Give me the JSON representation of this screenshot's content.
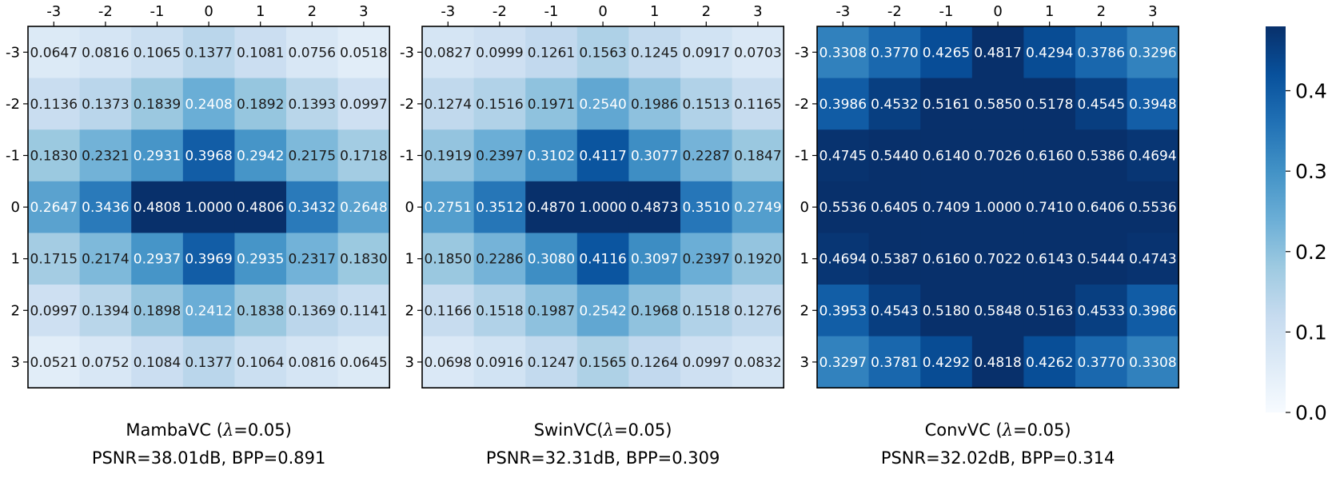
{
  "chart_data": [
    {
      "type": "heatmap",
      "title_line1_prefix": "MambaVC (",
      "title_line1_symbol": "λ",
      "title_line1_suffix": "=0.05)",
      "title_line2": "PSNR=38.01dB, BPP=0.891",
      "x_ticks": [
        "-3",
        "-2",
        "-1",
        "0",
        "1",
        "2",
        "3"
      ],
      "y_ticks": [
        "-3",
        "-2",
        "-1",
        "0",
        "1",
        "2",
        "3"
      ],
      "values": [
        [
          0.0647,
          0.0816,
          0.1065,
          0.1377,
          0.1081,
          0.0756,
          0.0518
        ],
        [
          0.1136,
          0.1373,
          0.1839,
          0.2408,
          0.1892,
          0.1393,
          0.0997
        ],
        [
          0.183,
          0.2321,
          0.2931,
          0.3968,
          0.2942,
          0.2175,
          0.1718
        ],
        [
          0.2647,
          0.3436,
          0.4808,
          1.0,
          0.4806,
          0.3432,
          0.2648
        ],
        [
          0.1715,
          0.2174,
          0.2937,
          0.3969,
          0.2935,
          0.2317,
          0.183
        ],
        [
          0.0997,
          0.1394,
          0.1898,
          0.2412,
          0.1838,
          0.1369,
          0.1141
        ],
        [
          0.0521,
          0.0752,
          0.1084,
          0.1377,
          0.1064,
          0.0816,
          0.0645
        ]
      ]
    },
    {
      "type": "heatmap",
      "title_line1_prefix": "SwinVC(",
      "title_line1_symbol": "λ",
      "title_line1_suffix": "=0.05)",
      "title_line2": "PSNR=32.31dB, BPP=0.309",
      "x_ticks": [
        "-3",
        "-2",
        "-1",
        "0",
        "1",
        "2",
        "3"
      ],
      "y_ticks": [
        "-3",
        "-2",
        "-1",
        "0",
        "1",
        "2",
        "3"
      ],
      "values": [
        [
          0.0827,
          0.0999,
          0.1261,
          0.1563,
          0.1245,
          0.0917,
          0.0703
        ],
        [
          0.1274,
          0.1516,
          0.1971,
          0.254,
          0.1986,
          0.1513,
          0.1165
        ],
        [
          0.1919,
          0.2397,
          0.3102,
          0.4117,
          0.3077,
          0.2287,
          0.1847
        ],
        [
          0.2751,
          0.3512,
          0.487,
          1.0,
          0.4873,
          0.351,
          0.2749
        ],
        [
          0.185,
          0.2286,
          0.308,
          0.4116,
          0.3097,
          0.2397,
          0.192
        ],
        [
          0.1166,
          0.1518,
          0.1987,
          0.2542,
          0.1968,
          0.1518,
          0.1276
        ],
        [
          0.0698,
          0.0916,
          0.1247,
          0.1565,
          0.1264,
          0.0997,
          0.0832
        ]
      ]
    },
    {
      "type": "heatmap",
      "title_line1_prefix": "ConvVC (",
      "title_line1_symbol": "λ",
      "title_line1_suffix": "=0.05)",
      "title_line2": "PSNR=32.02dB, BPP=0.314",
      "x_ticks": [
        "-3",
        "-2",
        "-1",
        "0",
        "1",
        "2",
        "3"
      ],
      "y_ticks": [
        "-3",
        "-2",
        "-1",
        "0",
        "1",
        "2",
        "3"
      ],
      "values": [
        [
          0.3308,
          0.377,
          0.4265,
          0.4817,
          0.4294,
          0.3786,
          0.3296
        ],
        [
          0.3986,
          0.4532,
          0.5161,
          0.585,
          0.5178,
          0.4545,
          0.3948
        ],
        [
          0.4745,
          0.544,
          0.614,
          0.7026,
          0.616,
          0.5386,
          0.4694
        ],
        [
          0.5536,
          0.6405,
          0.7409,
          1.0,
          0.741,
          0.6406,
          0.5536
        ],
        [
          0.4694,
          0.5387,
          0.616,
          0.7022,
          0.6143,
          0.5444,
          0.4743
        ],
        [
          0.3953,
          0.4543,
          0.518,
          0.5848,
          0.5163,
          0.4533,
          0.3986
        ],
        [
          0.3297,
          0.3781,
          0.4292,
          0.4818,
          0.4262,
          0.377,
          0.3308
        ]
      ]
    }
  ],
  "colorbar": {
    "range": [
      0.0,
      0.48
    ],
    "ticks": [
      {
        "value": 0.0,
        "label": "0.0"
      },
      {
        "value": 0.1,
        "label": "0.1"
      },
      {
        "value": 0.2,
        "label": "0.2"
      },
      {
        "value": 0.3,
        "label": "0.3"
      },
      {
        "value": 0.4,
        "label": "0.4"
      }
    ],
    "colormap": "Blues",
    "colormap_stops": [
      "#f7fbff",
      "#deebf7",
      "#c6dbef",
      "#9ecae1",
      "#6baed6",
      "#4292c6",
      "#2171b5",
      "#08519c",
      "#08306b"
    ]
  }
}
